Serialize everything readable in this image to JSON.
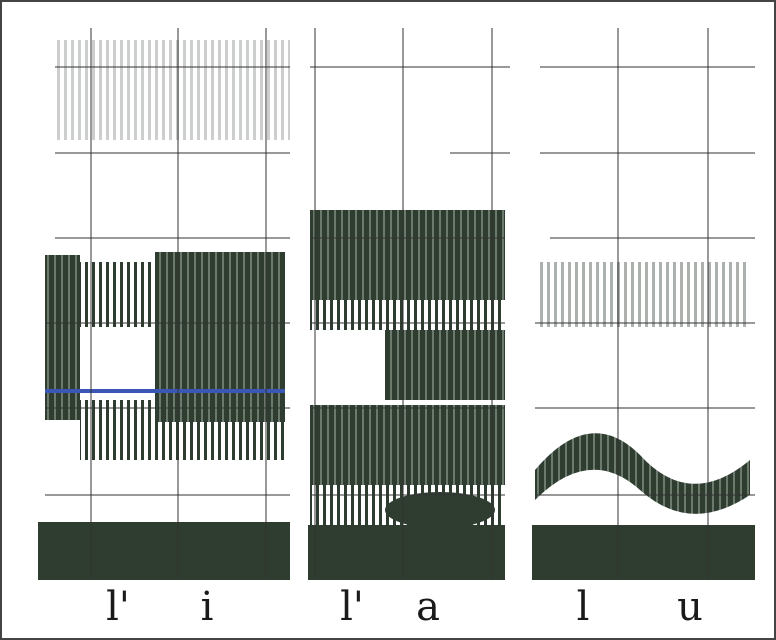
{
  "panels": [
    {
      "labels": [
        "l'",
        "i"
      ]
    },
    {
      "labels": [
        "l'",
        "a"
      ]
    },
    {
      "labels": [
        "l",
        "u"
      ]
    }
  ]
}
